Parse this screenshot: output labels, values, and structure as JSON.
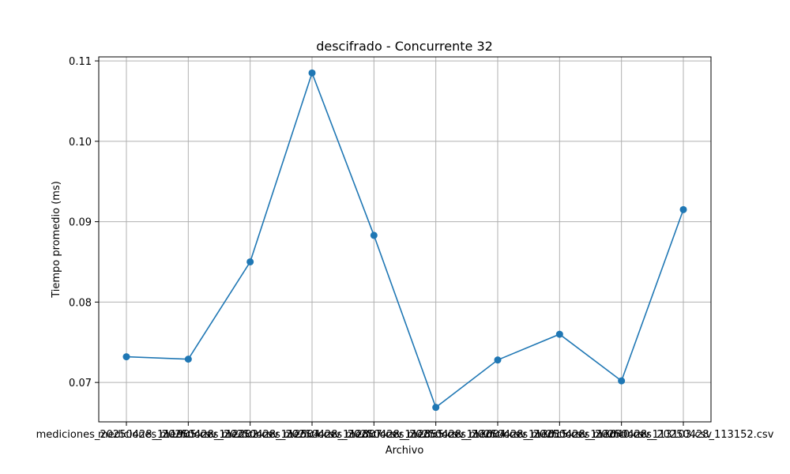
{
  "chart_data": {
    "type": "line",
    "title": "descifrado - Concurrente 32",
    "xlabel": "Archivo",
    "ylabel": "Tiempo promedio (ms)",
    "categories": [
      "mediciones_20250428_111905.csv",
      "mediciones_20250428_112202.csv",
      "mediciones_20250428_112504.csv",
      "mediciones_20250428_112807.csv",
      "mediciones_20250428_112855.csv",
      "mediciones_20250428_113004.csv",
      "mediciones_20250428_113015.csv",
      "mediciones_20250428_113040.csv",
      "mediciones_20250428_113103.csv",
      "mediciones_20250428_113152.csv"
    ],
    "series": [
      {
        "values": [
          0.0732,
          0.0729,
          0.085,
          0.1085,
          0.0883,
          0.0669,
          0.0728,
          0.076,
          0.0702,
          0.0915
        ],
        "color": "#1f77b4"
      }
    ],
    "ylim": [
      0.0651,
      0.1105
    ],
    "yticks": [
      0.07,
      0.08,
      0.09,
      0.1,
      0.11
    ],
    "ytick_labels": [
      "0.07",
      "0.08",
      "0.09",
      "0.10",
      "0.11"
    ],
    "grid": true,
    "marker": "circle"
  }
}
